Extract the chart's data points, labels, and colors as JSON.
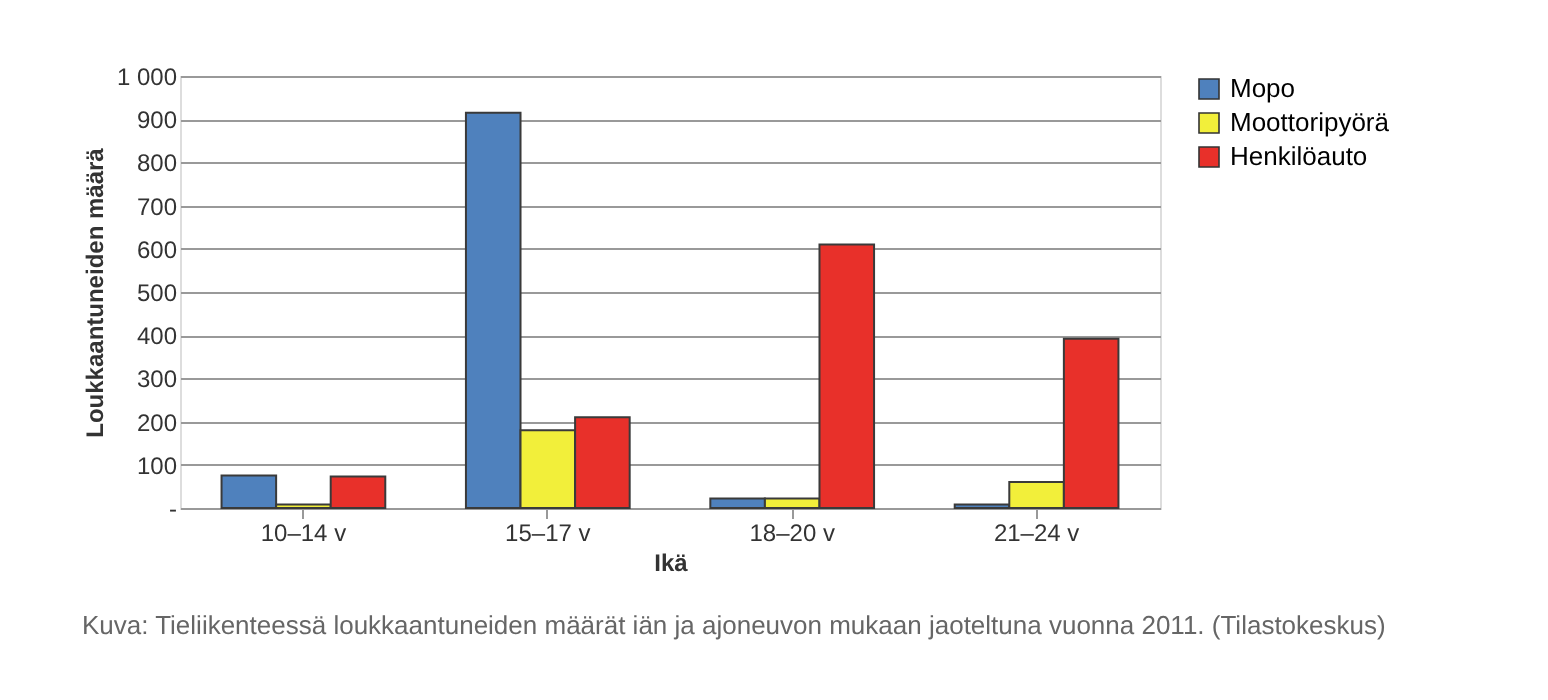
{
  "chart_data": {
    "type": "bar",
    "xlabel": "Ikä",
    "ylabel": "Loukkaantuneiden määrä",
    "categories": [
      "10–14 v",
      "15–17 v",
      "18–20 v",
      "21–24 v"
    ],
    "series": [
      {
        "name": "Mopo",
        "color": "#4f81bd",
        "values": [
          75,
          915,
          22,
          8
        ]
      },
      {
        "name": "Moottoripyörä",
        "color": "#f2ef3a",
        "values": [
          8,
          180,
          22,
          60
        ]
      },
      {
        "name": "Henkilöauto",
        "color": "#e8302a",
        "values": [
          73,
          210,
          610,
          392
        ]
      }
    ],
    "ylim": [
      0,
      1000
    ],
    "yticks": [
      {
        "value": 0,
        "label": "-"
      },
      100,
      200,
      300,
      400,
      500,
      600,
      700,
      800,
      900,
      {
        "value": 1000,
        "label": "1 000"
      }
    ],
    "grid": "y",
    "legend": "right",
    "annotations": [
      "Kuva: Tieliikenteessä loukkaantuneiden määrät iän ja ajoneuvon mukaan jaoteltuna vuonna 2011. (Tilastokeskus)"
    ]
  }
}
